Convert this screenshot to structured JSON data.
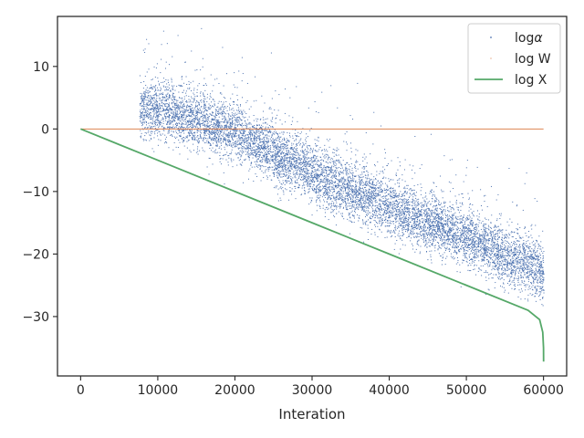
{
  "chart_data": {
    "type": "scatter",
    "title": "",
    "xlabel": "Interation",
    "ylabel": "",
    "xlim": [
      -3000,
      63000
    ],
    "ylim": [
      -39.5,
      18.0
    ],
    "xticks": [
      0,
      10000,
      20000,
      30000,
      40000,
      50000,
      60000
    ],
    "yticks": [
      10,
      0,
      -10,
      -20,
      -30
    ],
    "grid": false,
    "legend_position": "top-right",
    "colors": {
      "alpha": "#4c72b0",
      "w": "#dd8452",
      "x": "#55a868",
      "axes": "#262626"
    },
    "series": [
      {
        "name": "logα",
        "legend_main": "log",
        "legend_sub": "α",
        "kind": "scatter",
        "x_range": [
          7600,
          60000
        ],
        "trend": [
          [
            7600,
            3.5
          ],
          [
            10000,
            3.0
          ],
          [
            20000,
            -0.5
          ],
          [
            30000,
            -7.0
          ],
          [
            40000,
            -12.5
          ],
          [
            50000,
            -17.5
          ],
          [
            60000,
            -23.0
          ]
        ],
        "spread": 3.0,
        "density": "dense"
      },
      {
        "name": "log W",
        "legend_main": "log W",
        "kind": "line",
        "x": [
          0,
          60000
        ],
        "y": [
          0,
          0
        ]
      },
      {
        "name": "log X",
        "legend_main": "log X",
        "kind": "line",
        "x": [
          0,
          10000,
          20000,
          30000,
          40000,
          50000,
          58000,
          59500,
          59900,
          60000,
          60010
        ],
        "y": [
          0,
          -5.0,
          -10.0,
          -15.0,
          -20.0,
          -25.0,
          -29.0,
          -30.5,
          -32.5,
          -35.0,
          -37.2
        ]
      }
    ]
  }
}
